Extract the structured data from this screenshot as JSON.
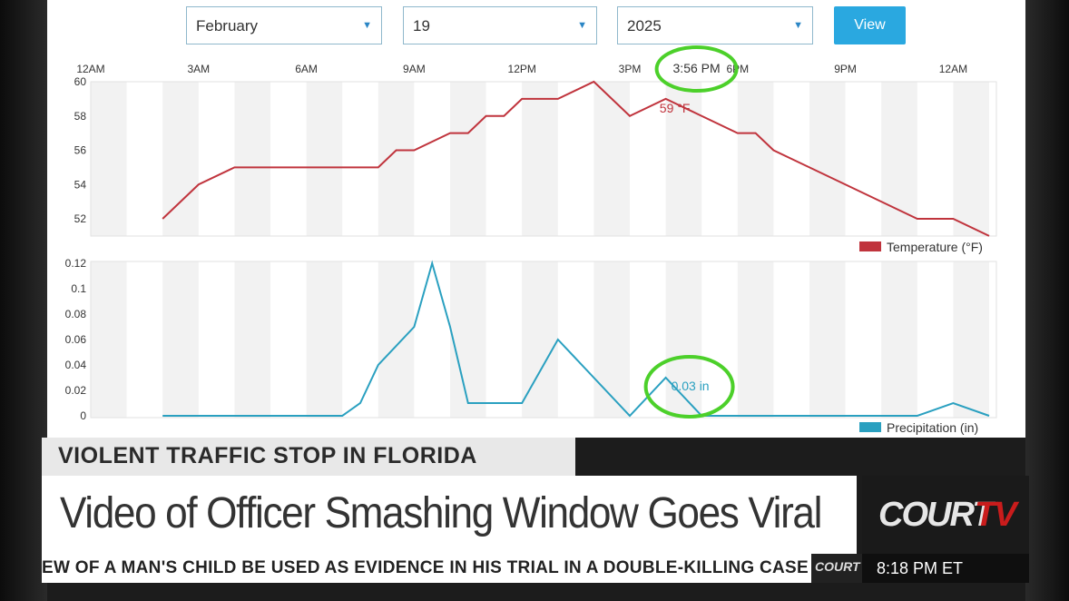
{
  "controls": {
    "month": "February",
    "day": "19",
    "year": "2025",
    "view_label": "View"
  },
  "time_axis": {
    "labels": [
      "12AM",
      "3AM",
      "6AM",
      "9AM",
      "12PM",
      "3PM",
      "6PM",
      "9PM",
      "12AM"
    ],
    "hover_time": "3:56 PM"
  },
  "chart_data": [
    {
      "type": "line",
      "title": "Temperature",
      "legend": "Temperature (°F)",
      "color": "#c0343d",
      "x_hours": [
        2,
        3,
        4,
        5,
        6,
        7,
        8,
        8.5,
        9,
        10,
        10.5,
        11,
        11.5,
        12,
        13,
        14,
        15,
        16,
        17,
        18,
        18.5,
        19,
        20,
        21,
        22,
        23,
        24,
        25
      ],
      "y": [
        52,
        54,
        55,
        55,
        55,
        55,
        55,
        56,
        56,
        57,
        57,
        58,
        58,
        59,
        59,
        60,
        58,
        59,
        58,
        57,
        57,
        56,
        55,
        54,
        53,
        52,
        52,
        51
      ],
      "ylim": [
        51,
        60
      ],
      "yticks": [
        52,
        54,
        56,
        58,
        60
      ],
      "annotation": {
        "x_hours": 16,
        "text": "59 °F"
      }
    },
    {
      "type": "line",
      "title": "Precipitation",
      "legend": "Precipitation (in)",
      "color": "#2aa0c0",
      "x_hours": [
        2,
        3,
        4,
        5,
        6,
        7,
        7.5,
        8,
        9,
        9.5,
        10,
        10.5,
        12,
        13,
        15,
        16,
        17,
        18,
        19,
        20,
        21,
        22,
        23,
        24,
        25
      ],
      "y": [
        0,
        0,
        0,
        0,
        0,
        0,
        0.01,
        0.04,
        0.07,
        0.12,
        0.07,
        0.01,
        0.01,
        0.06,
        0,
        0.03,
        0,
        0,
        0,
        0,
        0,
        0,
        0,
        0.01,
        0
      ],
      "ylim": [
        0,
        0.12
      ],
      "yticks": [
        0,
        0.02,
        0.04,
        0.06,
        0.08,
        0.1,
        0.12
      ],
      "ytick_labels": [
        "0",
        "0.02",
        "0.04",
        "0.06",
        "0.08",
        "0.1",
        "0.12"
      ],
      "annotation": {
        "x_hours": 16,
        "text": "0.03 in"
      }
    }
  ],
  "colors": {
    "highlight_circle": "#4cd02a",
    "grid_band": "#f2f2f2"
  },
  "lower_third": {
    "tag": "VIOLENT TRAFFIC STOP IN FLORIDA",
    "headline": "Video of Officer Smashing Window Goes Viral",
    "ticker": "EW OF A MAN'S CHILD BE USED AS EVIDENCE IN HIS TRIAL IN A DOUBLE-KILLING CASE",
    "logo_main": "COURT",
    "logo_tv": "TV",
    "ticker_logo": "COURT",
    "clock": "8:18 PM ET"
  }
}
